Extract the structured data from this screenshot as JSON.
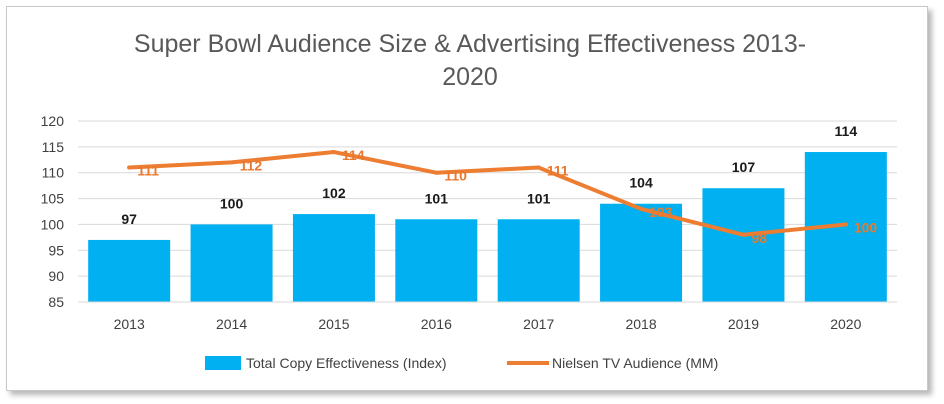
{
  "chart_data": {
    "type": "bar",
    "title_line1": "Super Bowl Audience Size & Advertising Effectiveness 2013-",
    "title_line2": "2020",
    "categories": [
      "2013",
      "2014",
      "2015",
      "2016",
      "2017",
      "2018",
      "2019",
      "2020"
    ],
    "ylim": [
      85,
      120
    ],
    "yticks": [
      "85",
      "90",
      "95",
      "100",
      "105",
      "110",
      "115",
      "120"
    ],
    "grid": true,
    "legend_position": "bottom",
    "series": [
      {
        "name": "Total Copy Effectiveness (Index)",
        "kind": "bar",
        "color": "#00b0f0",
        "values": [
          97,
          100,
          102,
          101,
          101,
          104,
          107,
          114
        ]
      },
      {
        "name": "Nielsen TV Audience (MM)",
        "kind": "line",
        "color": "#ed7d31",
        "values": [
          111,
          112,
          114,
          110,
          111,
          103,
          98,
          100
        ]
      }
    ]
  }
}
